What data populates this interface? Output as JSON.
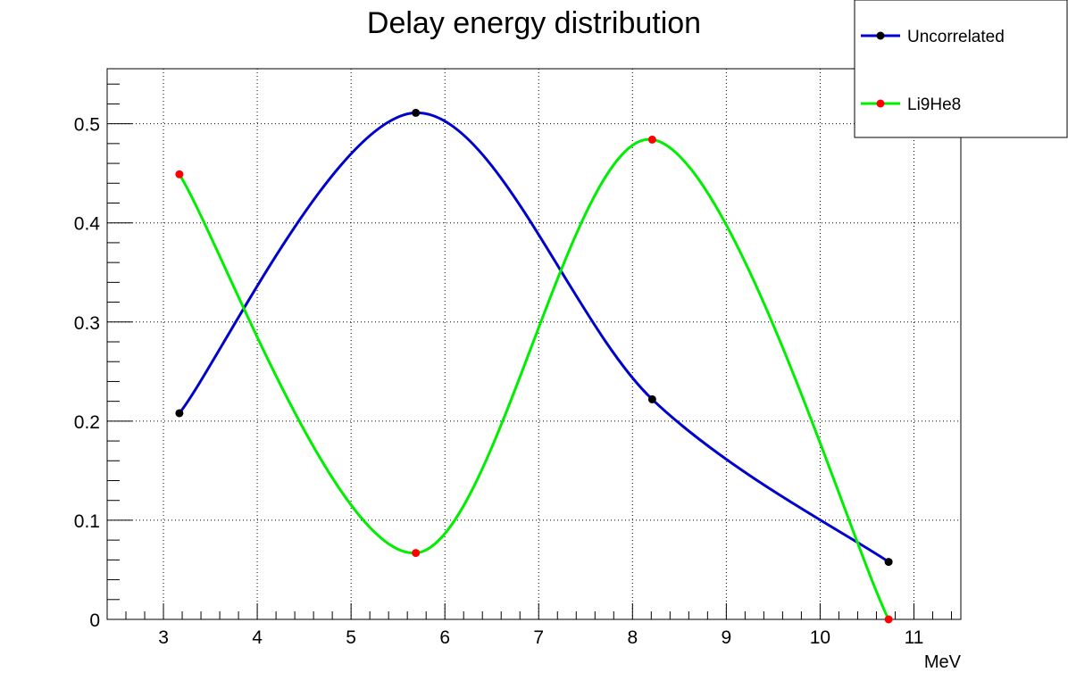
{
  "chart_data": {
    "type": "line",
    "title": "Delay energy distribution",
    "xlabel": "MeV",
    "ylabel": "",
    "xlim": [
      2.4,
      11.5
    ],
    "ylim": [
      0,
      0.5555
    ],
    "x_ticks": [
      3,
      4,
      5,
      6,
      7,
      8,
      9,
      10,
      11
    ],
    "y_ticks": [
      0,
      0.1,
      0.2,
      0.3,
      0.4,
      0.5
    ],
    "x_tick_labels": [
      "3",
      "4",
      "5",
      "6",
      "7",
      "8",
      "9",
      "10",
      "11"
    ],
    "y_tick_labels": [
      "0",
      "0.1",
      "0.2",
      "0.3",
      "0.4",
      "0.5"
    ],
    "grid": true,
    "smooth": true,
    "legend_position": "top-right",
    "series": [
      {
        "name": "Uncorrelated",
        "line_color": "#0000cc",
        "marker_color": "#000000",
        "x": [
          3.17,
          5.69,
          8.21,
          10.73
        ],
        "values": [
          0.208,
          0.511,
          0.222,
          0.058
        ]
      },
      {
        "name": "Li9He8",
        "line_color": "#00ee00",
        "marker_color": "#ff0000",
        "x": [
          3.17,
          5.69,
          8.21,
          10.73
        ],
        "values": [
          0.449,
          0.067,
          0.484,
          0.0
        ]
      }
    ]
  }
}
